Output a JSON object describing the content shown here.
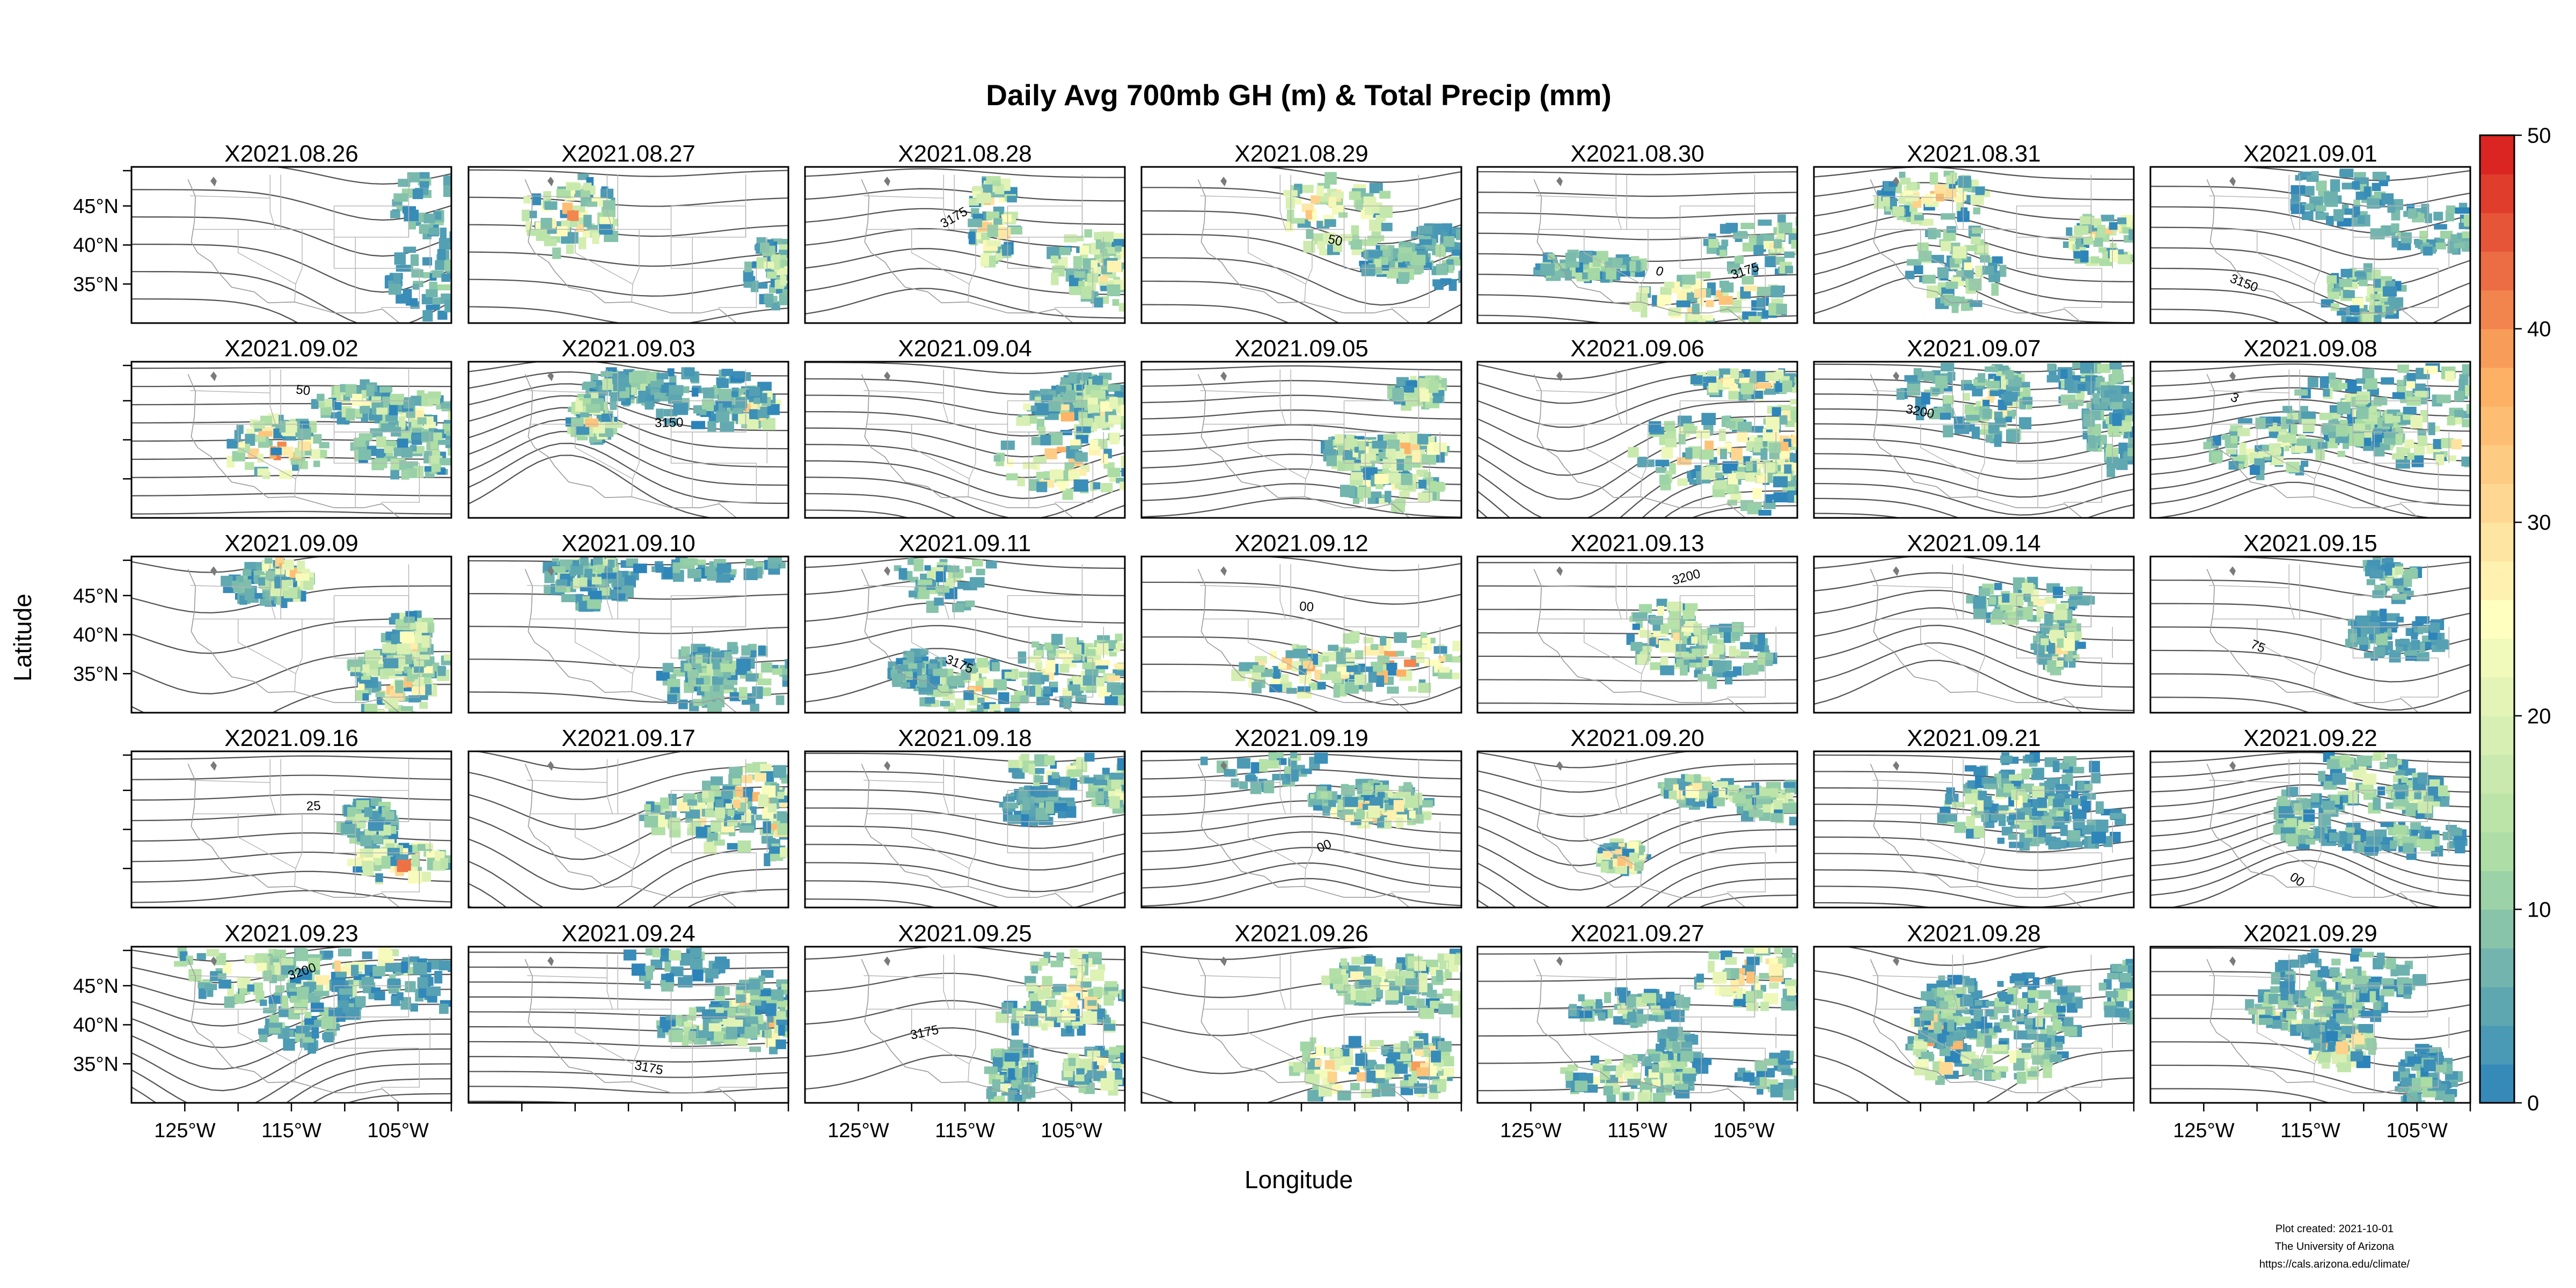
{
  "chart_data": {
    "type": "heatmap",
    "title": "Daily Avg 700mb GH (m) & Total Precip (mm)",
    "xlabel": "Longitude",
    "ylabel": "Latitude",
    "layout": {
      "rows": 5,
      "cols": 7
    },
    "panels": [
      "X2021.08.26",
      "X2021.08.27",
      "X2021.08.28",
      "X2021.08.29",
      "X2021.08.30",
      "X2021.08.31",
      "X2021.09.01",
      "X2021.09.02",
      "X2021.09.03",
      "X2021.09.04",
      "X2021.09.05",
      "X2021.09.06",
      "X2021.09.07",
      "X2021.09.08",
      "X2021.09.09",
      "X2021.09.10",
      "X2021.09.11",
      "X2021.09.12",
      "X2021.09.13",
      "X2021.09.14",
      "X2021.09.15",
      "X2021.09.16",
      "X2021.09.17",
      "X2021.09.18",
      "X2021.09.19",
      "X2021.09.20",
      "X2021.09.21",
      "X2021.09.22",
      "X2021.09.23",
      "X2021.09.24",
      "X2021.09.25",
      "X2021.09.26",
      "X2021.09.27",
      "X2021.09.28",
      "X2021.09.29"
    ],
    "x_ticks": [
      "125°W",
      "115°W",
      "105°W"
    ],
    "y_ticks": [
      "45°N",
      "40°N",
      "35°N"
    ],
    "xlim": [
      -130,
      -100
    ],
    "ylim": [
      30,
      50
    ],
    "colorbar": {
      "min": 0,
      "max": 50,
      "ticks": [
        "0",
        "10",
        "20",
        "30",
        "40",
        "50"
      ],
      "palette": [
        "#2b83ba",
        "#abdda4",
        "#ffffbf",
        "#fdae61",
        "#d7191c"
      ]
    },
    "contour_labels": {
      "X2021.08.28": [
        "3175"
      ],
      "X2021.08.29": [
        "50"
      ],
      "X2021.08.30": [
        "0",
        "3175"
      ],
      "X2021.09.01": [
        "3150"
      ],
      "X2021.09.02": [
        "50"
      ],
      "X2021.09.03": [
        "3150"
      ],
      "X2021.09.07": [
        "3200"
      ],
      "X2021.09.08": [
        "3"
      ],
      "X2021.09.11": [
        "3175"
      ],
      "X2021.09.12": [
        "00"
      ],
      "X2021.09.13": [
        "3200"
      ],
      "X2021.09.15": [
        "75"
      ],
      "X2021.09.16": [
        "25"
      ],
      "X2021.09.19": [
        "00"
      ],
      "X2021.09.22": [
        "00"
      ],
      "X2021.09.23": [
        "3200"
      ],
      "X2021.09.24": [
        "3175"
      ],
      "X2021.09.25": [
        "3175"
      ]
    },
    "grid": false
  },
  "credits": {
    "created": "Plot created: 2021-10-01",
    "org": "The University of Arizona",
    "url": "https://cals.arizona.edu/climate/"
  }
}
